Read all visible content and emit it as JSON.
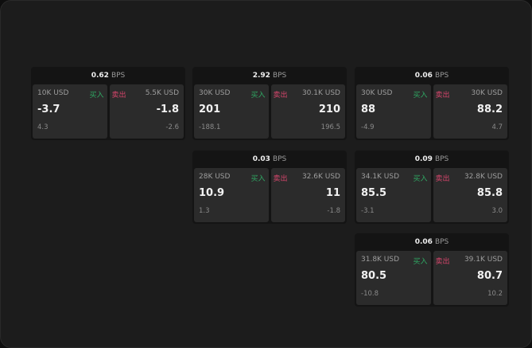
{
  "labels": {
    "buy": "买入",
    "sell": "卖出",
    "unit": "BPS"
  },
  "colors": {
    "buy": "#2fa863",
    "sell": "#d5456b"
  },
  "cards": [
    {
      "spread": "0.62",
      "buy": {
        "qty": "10K USD",
        "price": "-3.7",
        "change": "4.3"
      },
      "sell": {
        "qty": "5.5K USD",
        "price": "-1.8",
        "change": "-2.6"
      }
    },
    {
      "spread": "2.92",
      "buy": {
        "qty": "30K USD",
        "price": "201",
        "change": "-188.1"
      },
      "sell": {
        "qty": "30.1K USD",
        "price": "210",
        "change": "196.5"
      }
    },
    {
      "spread": "0.06",
      "buy": {
        "qty": "30K USD",
        "price": "88",
        "change": "-4.9"
      },
      "sell": {
        "qty": "30K USD",
        "price": "88.2",
        "change": "4.7"
      }
    },
    {
      "spread": "0.03",
      "buy": {
        "qty": "28K USD",
        "price": "10.9",
        "change": "1.3"
      },
      "sell": {
        "qty": "32.6K USD",
        "price": "11",
        "change": "-1.8"
      }
    },
    {
      "spread": "0.09",
      "buy": {
        "qty": "34.1K USD",
        "price": "85.5",
        "change": "-3.1"
      },
      "sell": {
        "qty": "32.8K USD",
        "price": "85.8",
        "change": "3.0"
      }
    },
    {
      "spread": "0.06",
      "buy": {
        "qty": "31.8K USD",
        "price": "80.5",
        "change": "-10.8"
      },
      "sell": {
        "qty": "39.1K USD",
        "price": "80.7",
        "change": "10.2"
      }
    }
  ]
}
